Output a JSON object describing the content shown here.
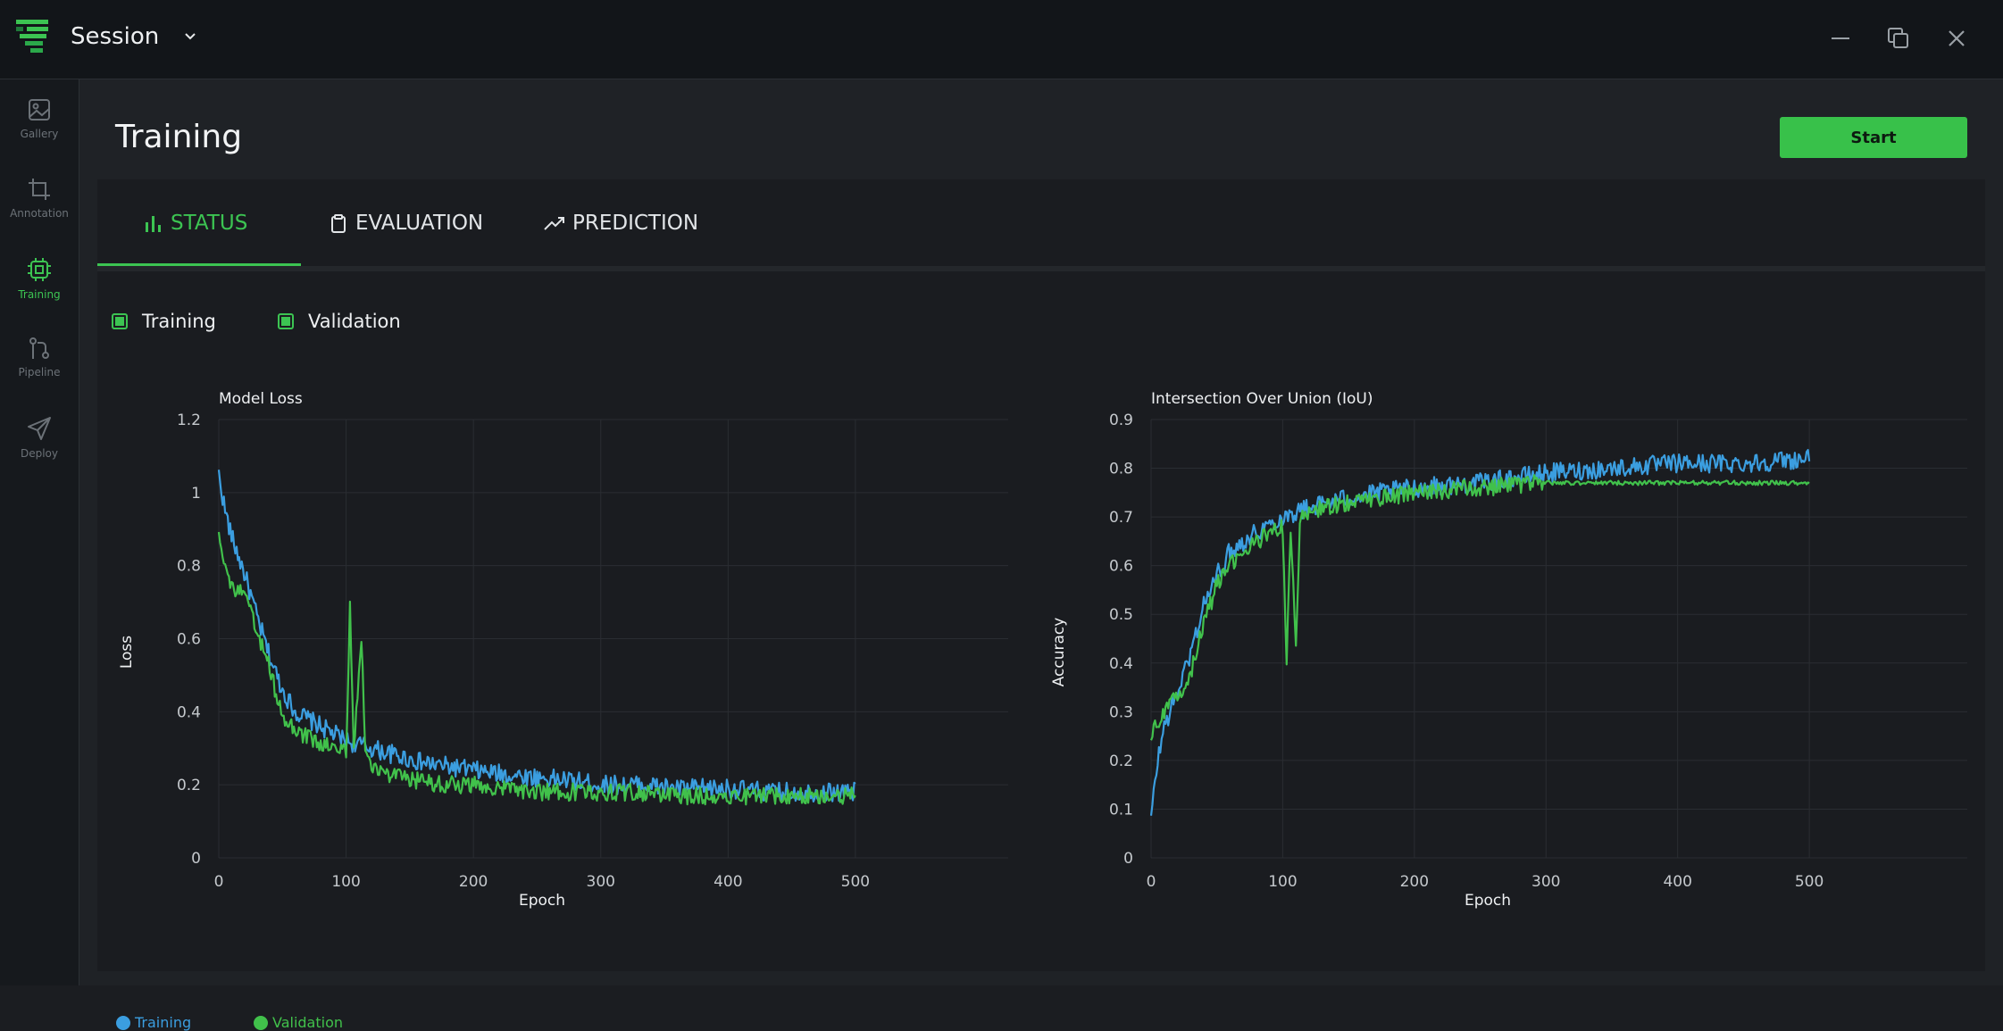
{
  "window": {
    "session_label": "Session"
  },
  "sidebar": {
    "items": [
      {
        "label": "Gallery",
        "icon": "image-icon",
        "active": false
      },
      {
        "label": "Annotation",
        "icon": "crop-icon",
        "active": false
      },
      {
        "label": "Training",
        "icon": "chip-icon",
        "active": true
      },
      {
        "label": "Pipeline",
        "icon": "pipeline-icon",
        "active": false
      },
      {
        "label": "Deploy",
        "icon": "send-icon",
        "active": false
      }
    ]
  },
  "page": {
    "title": "Training",
    "start_label": "Start"
  },
  "tabs": [
    {
      "label": "STATUS",
      "icon": "bar-chart-icon",
      "active": true
    },
    {
      "label": "EVALUATION",
      "icon": "clipboard-icon",
      "active": false
    },
    {
      "label": "PREDICTION",
      "icon": "trending-up-icon",
      "active": false
    }
  ],
  "filters": [
    {
      "label": "Training",
      "checked": true
    },
    {
      "label": "Validation",
      "checked": true
    }
  ],
  "colors": {
    "accent": "#3cc452",
    "training": "#3b9ee0",
    "validation": "#41c14b"
  },
  "chart_data": [
    {
      "type": "line",
      "title": "Model Loss",
      "xlabel": "Epoch",
      "ylabel": "Loss",
      "xlim": [
        0,
        620
      ],
      "ylim": [
        0,
        1.2
      ],
      "xticks": [
        0,
        100,
        200,
        300,
        400,
        500
      ],
      "yticks": [
        0,
        0.2,
        0.4,
        0.6,
        0.8,
        1,
        1.2
      ],
      "grid": true,
      "legend": "bottom-left",
      "series": [
        {
          "name": "Training",
          "color": "#3b9ee0",
          "x": [
            0,
            5,
            10,
            20,
            30,
            40,
            50,
            60,
            70,
            80,
            90,
            100,
            120,
            140,
            160,
            180,
            200,
            220,
            250,
            280,
            300,
            330,
            360,
            400,
            430,
            460,
            480,
            500
          ],
          "y": [
            1.05,
            0.95,
            0.88,
            0.78,
            0.66,
            0.55,
            0.46,
            0.4,
            0.38,
            0.36,
            0.34,
            0.32,
            0.3,
            0.28,
            0.26,
            0.25,
            0.24,
            0.23,
            0.22,
            0.21,
            0.2,
            0.2,
            0.19,
            0.19,
            0.18,
            0.18,
            0.18,
            0.18
          ]
        },
        {
          "name": "Validation",
          "color": "#41c14b",
          "x": [
            0,
            5,
            10,
            20,
            30,
            40,
            50,
            60,
            70,
            80,
            90,
            100,
            103,
            106,
            112,
            115,
            118,
            125,
            140,
            160,
            180,
            200,
            220,
            250,
            280,
            320,
            360,
            400,
            450,
            500
          ],
          "y": [
            0.9,
            0.8,
            0.74,
            0.72,
            0.62,
            0.52,
            0.38,
            0.35,
            0.33,
            0.31,
            0.3,
            0.29,
            0.69,
            0.3,
            0.6,
            0.3,
            0.27,
            0.24,
            0.22,
            0.21,
            0.2,
            0.2,
            0.19,
            0.18,
            0.18,
            0.18,
            0.17,
            0.17,
            0.17,
            0.17
          ]
        }
      ]
    },
    {
      "type": "line",
      "title": "Intersection Over Union (IoU)",
      "xlabel": "Epoch",
      "ylabel": "Accuracy",
      "xlim": [
        0,
        620
      ],
      "ylim": [
        0,
        0.9
      ],
      "xticks": [
        0,
        100,
        200,
        300,
        400,
        500
      ],
      "yticks": [
        0,
        0.1,
        0.2,
        0.3,
        0.4,
        0.5,
        0.6,
        0.7,
        0.8,
        0.9
      ],
      "grid": true,
      "series": [
        {
          "name": "Training",
          "color": "#3b9ee0",
          "x": [
            0,
            5,
            10,
            20,
            30,
            40,
            50,
            60,
            80,
            100,
            120,
            150,
            200,
            250,
            300,
            350,
            400,
            450,
            500
          ],
          "y": [
            0.08,
            0.2,
            0.27,
            0.34,
            0.42,
            0.52,
            0.58,
            0.63,
            0.67,
            0.7,
            0.72,
            0.74,
            0.76,
            0.77,
            0.79,
            0.8,
            0.81,
            0.81,
            0.82
          ]
        },
        {
          "name": "Validation",
          "color": "#41c14b",
          "x": [
            0,
            5,
            10,
            20,
            30,
            40,
            50,
            60,
            80,
            100,
            103,
            106,
            110,
            113,
            116,
            120,
            150,
            200,
            250,
            300,
            350,
            400,
            450,
            500
          ],
          "y": [
            0.25,
            0.28,
            0.3,
            0.33,
            0.38,
            0.48,
            0.56,
            0.6,
            0.65,
            0.68,
            0.4,
            0.68,
            0.43,
            0.69,
            0.7,
            0.71,
            0.73,
            0.75,
            0.76,
            0.77,
            0.77,
            0.77,
            0.77,
            0.77
          ]
        }
      ]
    }
  ]
}
